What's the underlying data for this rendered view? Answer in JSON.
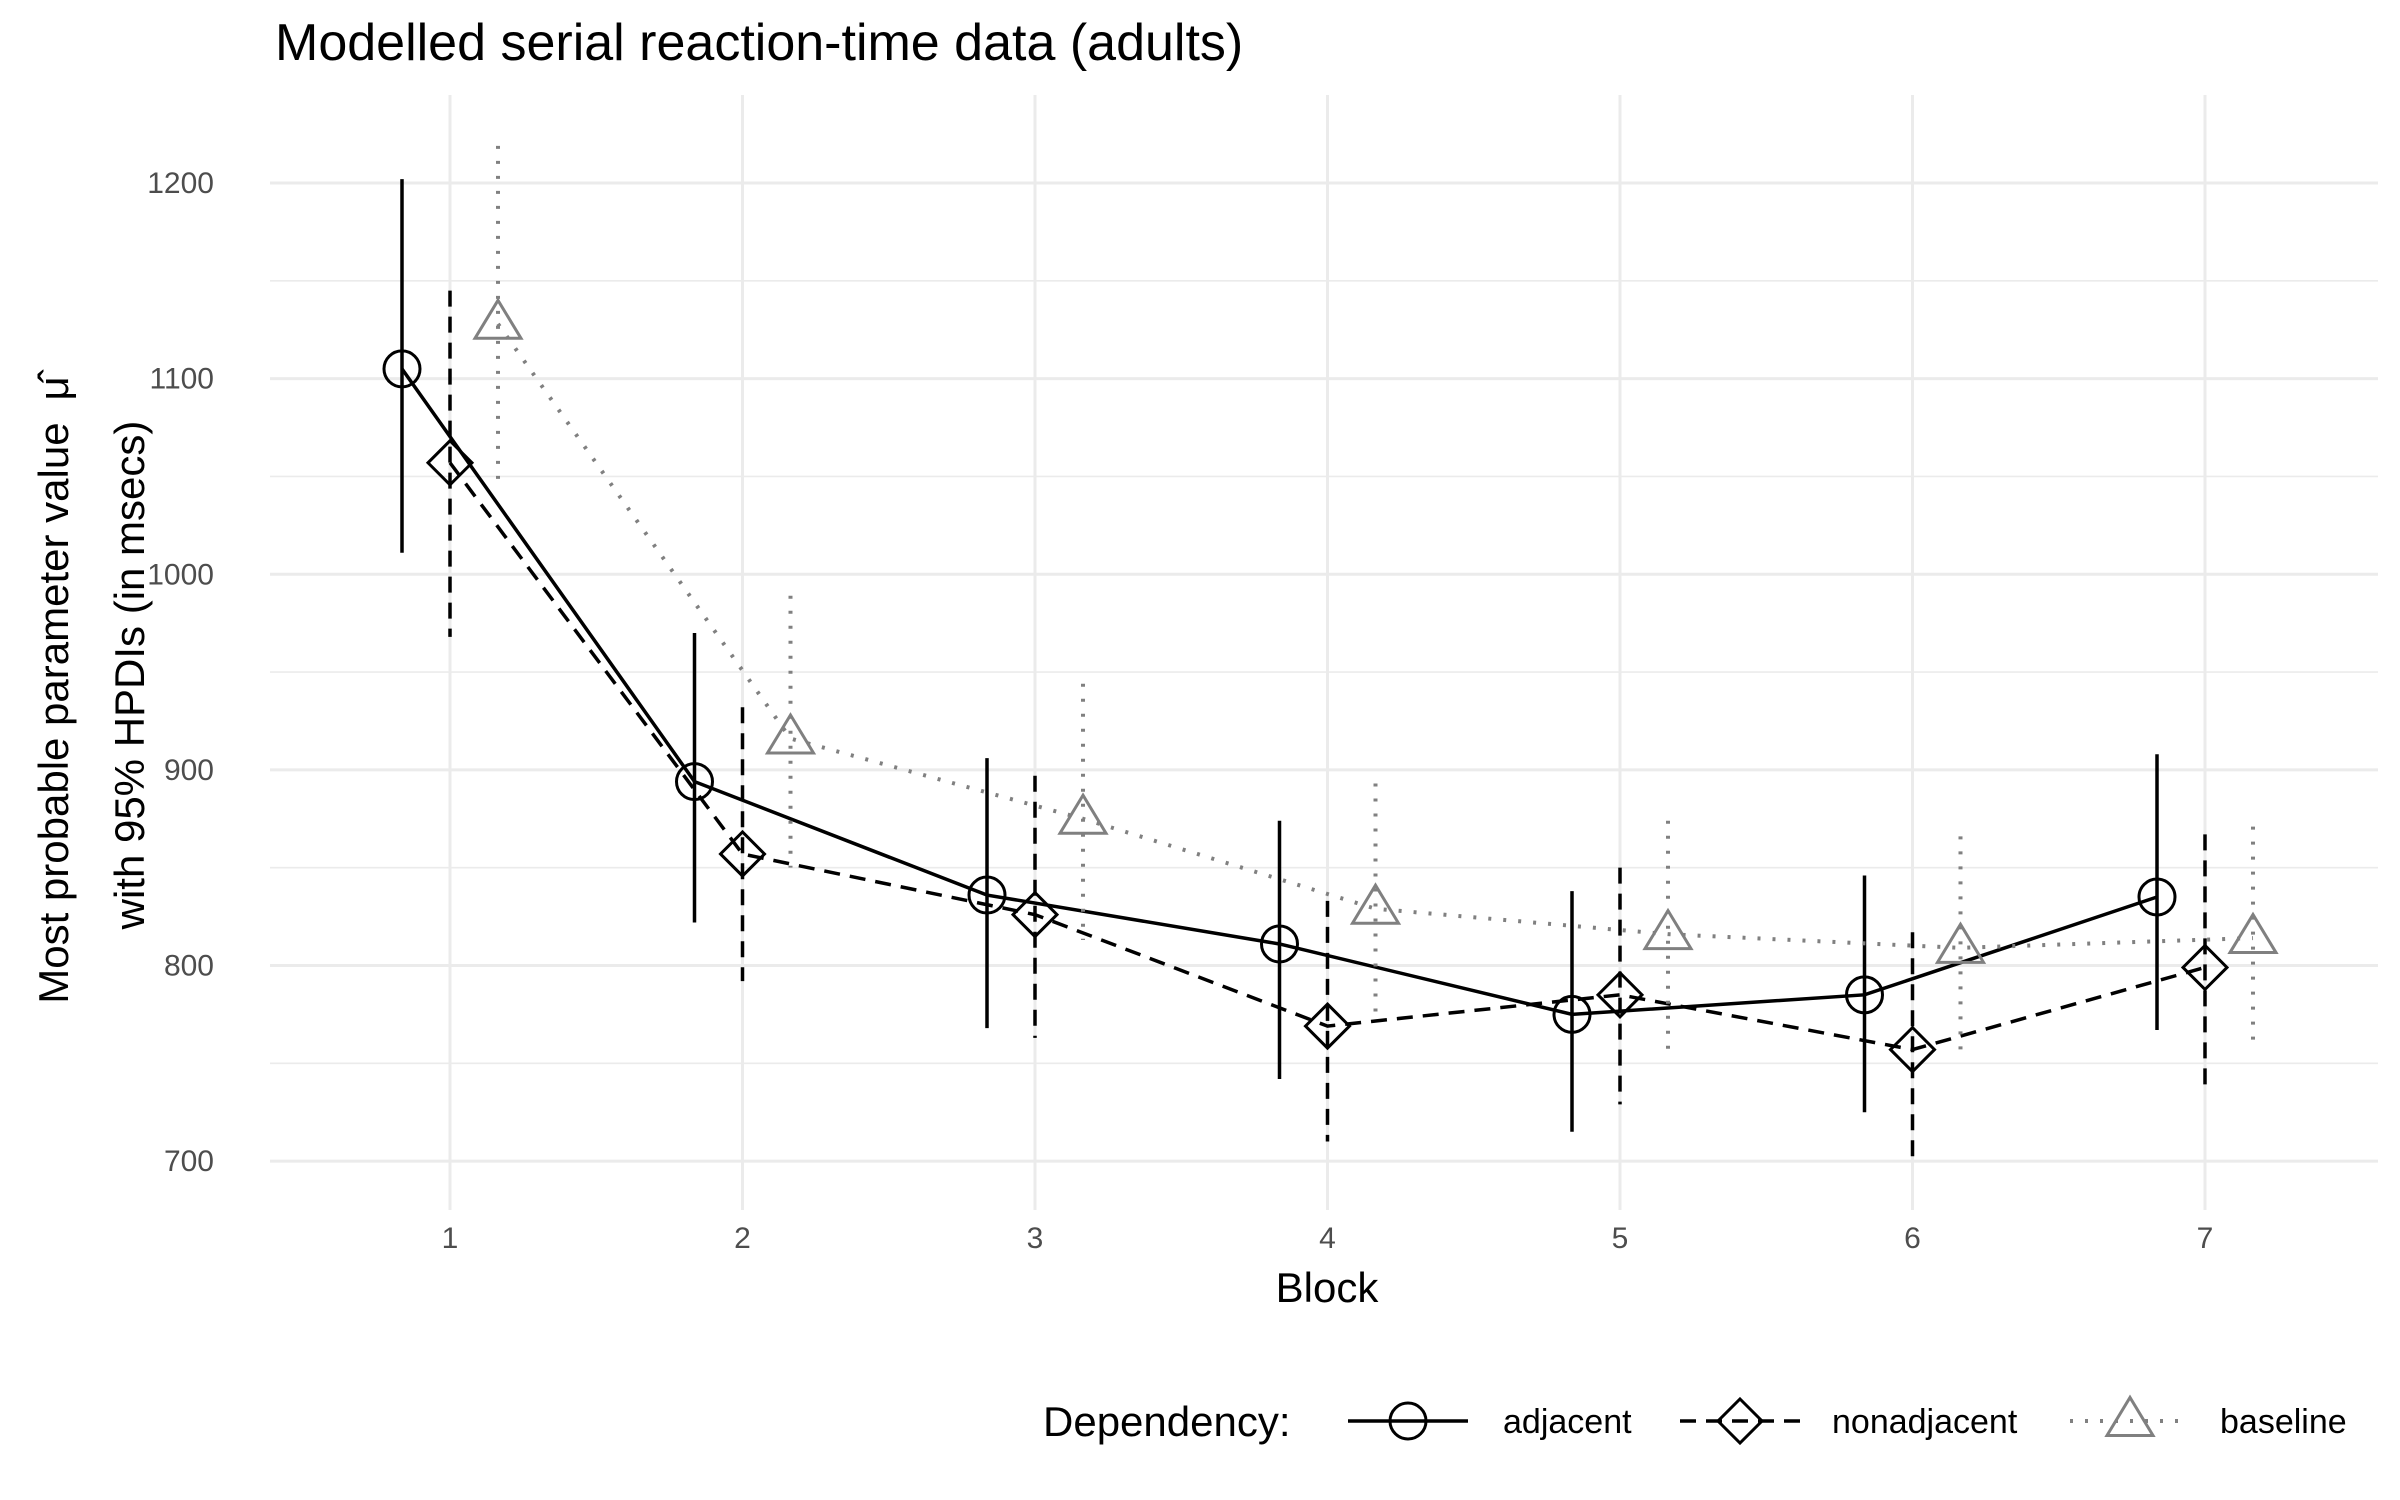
{
  "chart_data": {
    "type": "line",
    "title": "Modelled serial reaction-time data (adults)",
    "xlabel": "Block",
    "ylabel_line1": "Most probable parameter value",
    "ylabel_symbol": "μ̂",
    "ylabel_line2": "with 95% HPDIs (in msecs)",
    "categories": [
      "1",
      "2",
      "3",
      "4",
      "5",
      "6",
      "7"
    ],
    "y_ticks": [
      "700",
      "800",
      "900",
      "1000",
      "1100",
      "1200"
    ],
    "ylim": [
      675,
      1245
    ],
    "grid": true,
    "legend": {
      "title": "Dependency:",
      "position": "bottom-right"
    },
    "series": [
      {
        "name": "adjacent",
        "marker": "circle",
        "line_style": "solid",
        "color": "#000000",
        "values": [
          1105,
          894,
          836,
          811,
          775,
          785,
          835
        ],
        "lower": [
          1011,
          822,
          768,
          742,
          715,
          725,
          767
        ],
        "upper": [
          1202,
          970,
          906,
          874,
          838,
          846,
          908
        ]
      },
      {
        "name": "nonadjacent",
        "marker": "diamond",
        "line_style": "dashed",
        "color": "#000000",
        "values": [
          1057,
          857,
          826,
          769,
          785,
          757,
          799
        ],
        "lower": [
          968,
          792,
          763,
          710,
          729,
          700,
          736
        ],
        "upper": [
          1145,
          932,
          897,
          833,
          850,
          817,
          867
        ]
      },
      {
        "name": "baseline",
        "marker": "triangle",
        "line_style": "dotted",
        "color": "#808080",
        "values": [
          1128,
          916,
          875,
          829,
          816,
          809,
          814
        ],
        "lower": [
          1043,
          850,
          813,
          773,
          755,
          754,
          758
        ],
        "upper": [
          1219,
          989,
          944,
          893,
          874,
          866,
          871
        ]
      }
    ]
  }
}
